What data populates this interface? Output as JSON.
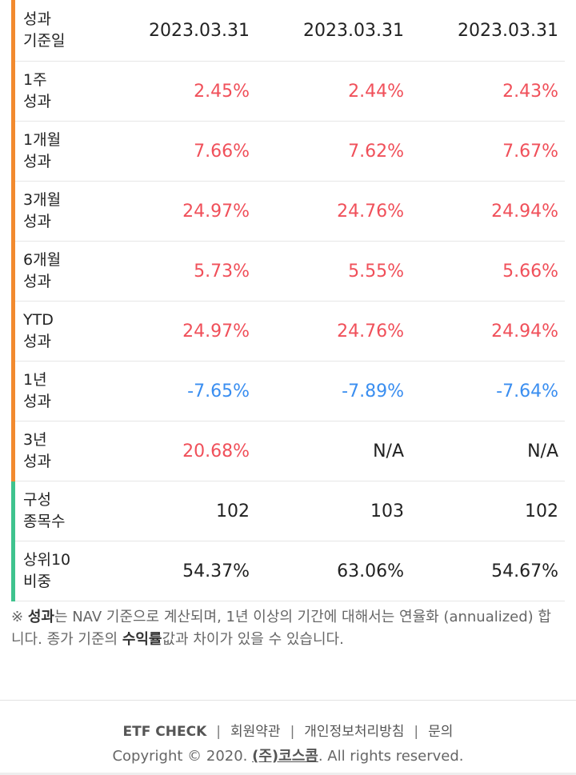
{
  "rows": [
    {
      "label1": "성과",
      "label2": "기준일",
      "values": [
        "2023.03.31",
        "2023.03.31",
        "2023.03.31"
      ],
      "kind": "neutral",
      "bar": "orange"
    },
    {
      "label1": "1주",
      "label2": "성과",
      "values": [
        "2.45%",
        "2.44%",
        "2.43%"
      ],
      "kind": "pos",
      "bar": "orange"
    },
    {
      "label1": "1개월",
      "label2": "성과",
      "values": [
        "7.66%",
        "7.62%",
        "7.67%"
      ],
      "kind": "pos",
      "bar": "orange"
    },
    {
      "label1": "3개월",
      "label2": "성과",
      "values": [
        "24.97%",
        "24.76%",
        "24.94%"
      ],
      "kind": "pos",
      "bar": "orange"
    },
    {
      "label1": "6개월",
      "label2": "성과",
      "values": [
        "5.73%",
        "5.55%",
        "5.66%"
      ],
      "kind": "pos",
      "bar": "orange"
    },
    {
      "label1": "YTD",
      "label2": "성과",
      "values": [
        "24.97%",
        "24.76%",
        "24.94%"
      ],
      "kind": "pos",
      "bar": "orange"
    },
    {
      "label1": "1년",
      "label2": "성과",
      "values": [
        "-7.65%",
        "-7.89%",
        "-7.64%"
      ],
      "kind": "neg",
      "bar": "orange"
    },
    {
      "label1": "3년",
      "label2": "성과",
      "values": [
        "20.68%",
        "N/A",
        "N/A"
      ],
      "kind": "mixed",
      "bar": "orange"
    },
    {
      "label1": "구성",
      "label2": "종목수",
      "values": [
        "102",
        "103",
        "102"
      ],
      "kind": "neutral",
      "bar": "green"
    },
    {
      "label1": "상위10",
      "label2": "비중",
      "values": [
        "54.37%",
        "63.06%",
        "54.67%"
      ],
      "kind": "neutral",
      "bar": "green"
    }
  ],
  "note": {
    "prefix": "※ ",
    "bold1": "성과",
    "text1": "는 NAV 기준으로 계산되며, 1년 이상의 기간에 대해서는 연율화 (annualized) 합니다. 종가 기준의 ",
    "bold2": "수익률",
    "text2": "값과 차이가 있을 수 있습니다."
  },
  "footer": {
    "brand": "ETF CHECK",
    "sep": "|",
    "link1": "회원약관",
    "link2": "개인정보처리방침",
    "link3": "문의",
    "copyright_prefix": "Copyright © 2020. ",
    "company": "(주)코스콤",
    "copyright_suffix": ". All rights reserved."
  },
  "colors": {
    "positive": "#f0505a",
    "negative": "#3a8ef0",
    "bar_orange": "#f28a2e",
    "bar_green": "#3fc38e"
  }
}
